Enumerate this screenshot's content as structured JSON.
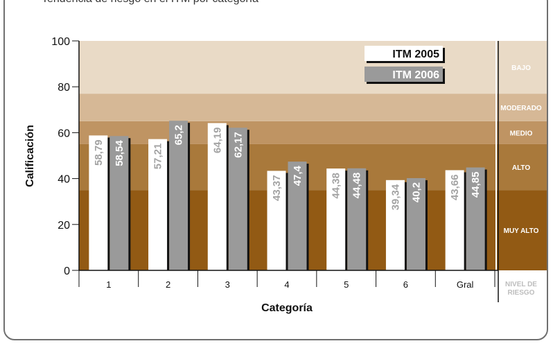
{
  "caption": "Tendencia de riesgo en el ITM por categoría",
  "chart_data": {
    "type": "bar",
    "categories": [
      "1",
      "2",
      "3",
      "4",
      "5",
      "6",
      "Gral"
    ],
    "series": [
      {
        "name": "ITM 2005",
        "values": [
          58.79,
          57.21,
          64.19,
          43.37,
          44.38,
          39.34,
          43.66
        ],
        "labels": [
          "58,79",
          "57,21",
          "64,19",
          "43,37",
          "44,38",
          "39,34",
          "43,66"
        ],
        "color": "#ffffff"
      },
      {
        "name": "ITM 2006",
        "values": [
          58.54,
          65.2,
          62.17,
          47.4,
          44.48,
          40.2,
          44.85
        ],
        "labels": [
          "58,54",
          "65,2",
          "62,17",
          "47,4",
          "44,48",
          "40,2",
          "44,85"
        ],
        "color": "#9a9a9a"
      }
    ],
    "xlabel": "Categoría",
    "ylabel": "Calificación",
    "ylim": [
      0,
      100
    ],
    "yticks": [
      "0",
      "20",
      "40",
      "60",
      "80",
      "100"
    ],
    "risk_header": "NIVEL DE RIESGO",
    "risk_zones": [
      {
        "label": "MUY ALTO",
        "from": 0,
        "to": 35,
        "color": "#925a14"
      },
      {
        "label": "ALTO",
        "from": 35,
        "to": 55,
        "color": "#a9793b"
      },
      {
        "label": "MEDIO",
        "from": 55,
        "to": 65,
        "color": "#bf9463"
      },
      {
        "label": "MODERADO",
        "from": 65,
        "to": 77,
        "color": "#d6b896"
      },
      {
        "label": "BAJO",
        "from": 77,
        "to": 100,
        "color": "#e9dac6"
      }
    ]
  }
}
